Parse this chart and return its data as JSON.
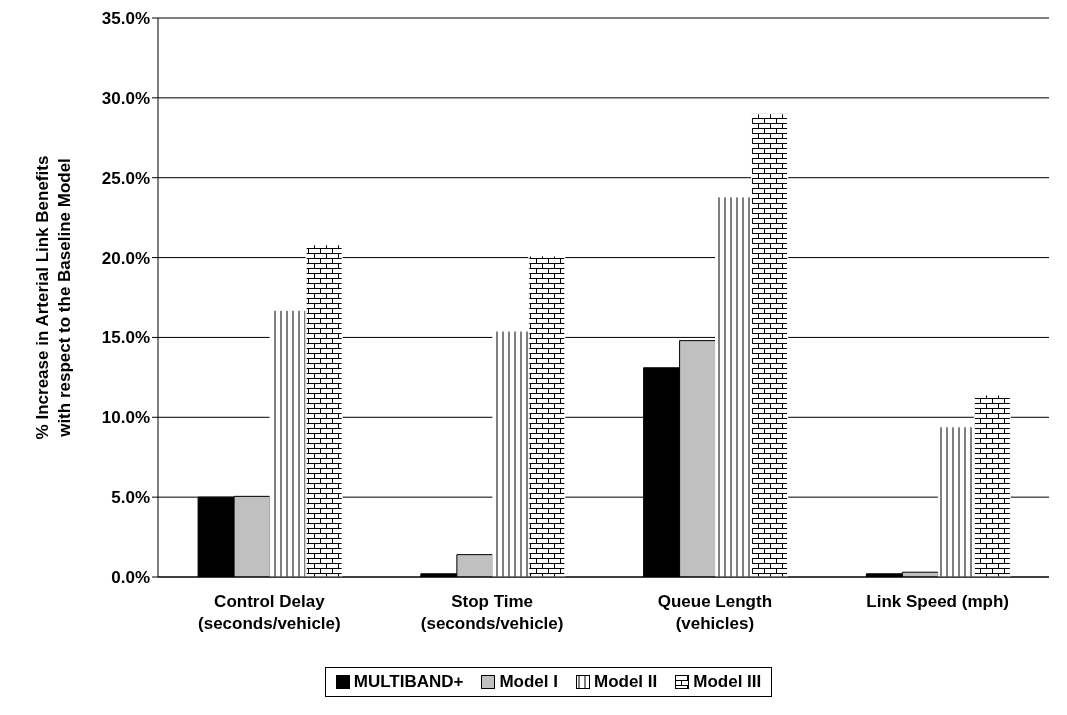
{
  "chart_data": {
    "type": "bar",
    "ylabel": "% Increase in Arterial Link Benefits\nwith respect to the Baseline Model",
    "categories": [
      "Control Delay\n(seconds/vehicle)",
      "Stop Time\n(seconds/vehicle)",
      "Queue Length\n(vehicles)",
      "Link Speed (mph)"
    ],
    "series": [
      {
        "name": "MULTIBAND+",
        "color": "#000000",
        "values": [
          5.0,
          0.2,
          13.1,
          0.2
        ]
      },
      {
        "name": "Model I",
        "color": "#c0c0c0",
        "values": [
          5.05,
          1.4,
          14.8,
          0.3
        ]
      },
      {
        "name": "Model II",
        "color": "#ffffff",
        "values": [
          16.7,
          15.4,
          23.8,
          9.4
        ]
      },
      {
        "name": "Model III",
        "color": "#ffffff",
        "values": [
          20.8,
          20.1,
          29.0,
          11.4
        ]
      }
    ],
    "ylim": [
      0,
      35
    ],
    "yticks": [
      {
        "value": 0,
        "label": "0.0%"
      },
      {
        "value": 5,
        "label": "5.0%"
      },
      {
        "value": 10,
        "label": "10.0%"
      },
      {
        "value": 15,
        "label": "15.0%"
      },
      {
        "value": 20,
        "label": "20.0%"
      },
      {
        "value": 25,
        "label": "25.0%"
      },
      {
        "value": 30,
        "label": "30.0%"
      },
      {
        "value": 35,
        "label": "35.0%"
      }
    ],
    "grid": "y",
    "legend": "bottom"
  }
}
